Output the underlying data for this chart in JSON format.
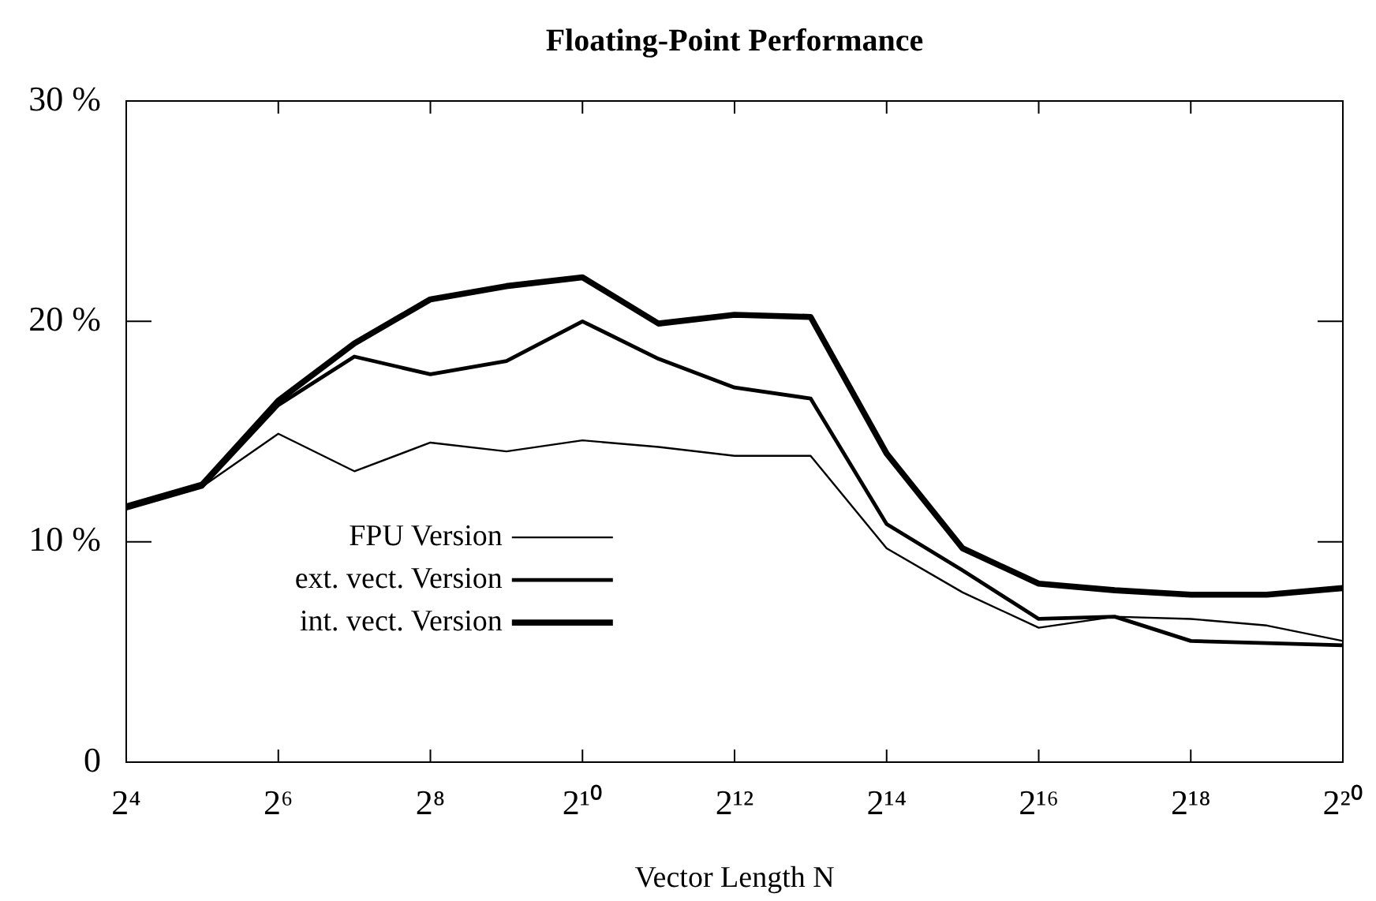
{
  "chart_data": {
    "type": "line",
    "title": "Floating-Point Performance",
    "xlabel": "Vector Length N",
    "x": [
      16,
      32,
      64,
      128,
      256,
      512,
      1024,
      2048,
      4096,
      8192,
      16384,
      32768,
      65536,
      131072,
      262144,
      524288,
      1048576
    ],
    "series": [
      {
        "name": "FPU Version",
        "color": "#000000",
        "values": [
          11.5,
          12.5,
          14.9,
          13.2,
          14.5,
          14.1,
          14.6,
          14.3,
          13.9,
          13.9,
          9.7,
          7.7,
          6.1,
          6.6,
          6.5,
          6.2,
          5.5
        ]
      },
      {
        "name": "ext. vect. Version",
        "color": "#000000",
        "values": [
          11.5,
          12.5,
          16.2,
          18.4,
          17.6,
          18.2,
          20.0,
          18.3,
          17.0,
          16.5,
          10.8,
          8.7,
          6.5,
          6.6,
          5.5,
          5.4,
          5.3
        ]
      },
      {
        "name": "int. vect. Version",
        "color": "#000000",
        "values": [
          11.6,
          12.6,
          16.4,
          19.0,
          21.0,
          21.6,
          22.0,
          19.9,
          20.3,
          20.2,
          14.0,
          9.7,
          8.1,
          7.8,
          7.6,
          7.6,
          7.9
        ]
      }
    ],
    "log": "x",
    "xlim": [
      16,
      1048576
    ],
    "xticks": [
      {
        "value": 16,
        "label": "2⁴"
      },
      {
        "value": 64,
        "label": "2⁶"
      },
      {
        "value": 256,
        "label": "2⁸"
      },
      {
        "value": 1024,
        "label": "2¹⁰"
      },
      {
        "value": 4096,
        "label": "2¹²"
      },
      {
        "value": 16384,
        "label": "2¹⁴"
      },
      {
        "value": 65536,
        "label": "2¹⁶"
      },
      {
        "value": 262144,
        "label": "2¹⁸"
      },
      {
        "value": 1048576,
        "label": "2²⁰"
      }
    ],
    "ylim": [
      0,
      30
    ],
    "yticks": [
      0,
      {
        "value": 10,
        "label": "10 %"
      },
      {
        "value": 20,
        "label": "20 %"
      },
      {
        "value": 30,
        "label": "30 %"
      }
    ],
    "grid": false,
    "legend": "left",
    "marker": "none",
    "line_style": "solid"
  }
}
